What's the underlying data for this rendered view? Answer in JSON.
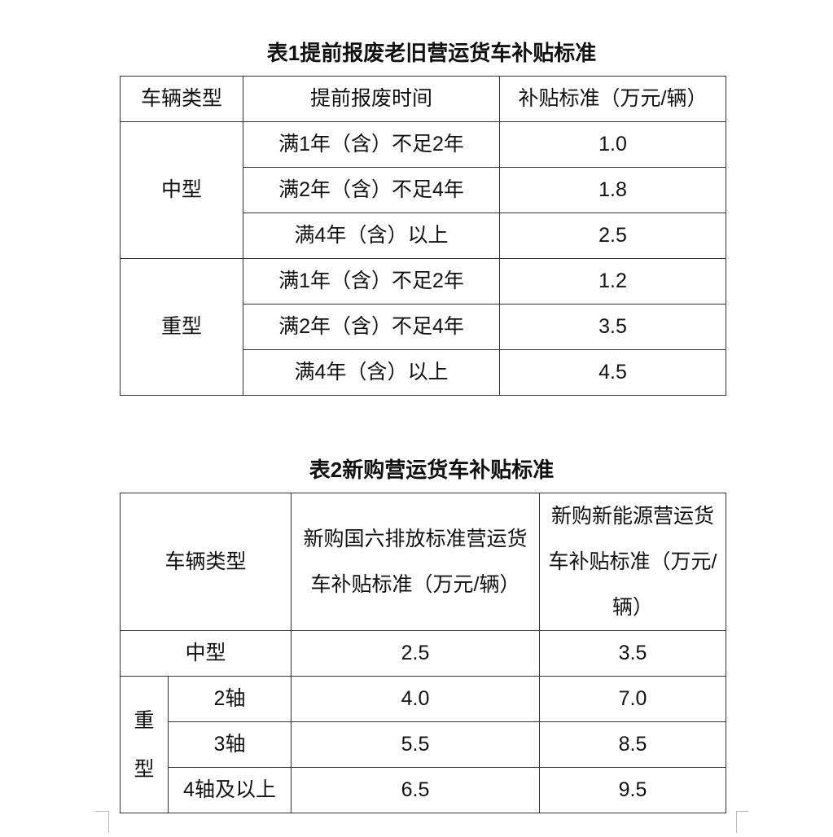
{
  "table1": {
    "title": "表1提前报废老旧营运货车补贴标准",
    "headers": [
      "车辆类型",
      "提前报废时间",
      "补贴标准（万元/辆）"
    ],
    "groups": [
      {
        "type": "中型",
        "rows": [
          {
            "period": "满1年（含）不足2年",
            "subsidy": "1.0"
          },
          {
            "period": "满2年（含）不足4年",
            "subsidy": "1.8"
          },
          {
            "period": "满4年（含）以上",
            "subsidy": "2.5"
          }
        ]
      },
      {
        "type": "重型",
        "rows": [
          {
            "period": "满1年（含）不足2年",
            "subsidy": "1.2"
          },
          {
            "period": "满2年（含）不足4年",
            "subsidy": "3.5"
          },
          {
            "period": "满4年（含）以上",
            "subsidy": "4.5"
          }
        ]
      }
    ]
  },
  "table2": {
    "title": "表2新购营运货车补贴标准",
    "headers": [
      "车辆类型",
      "新购国六排放标准营运货车补贴标准（万元/辆）",
      "新购新能源营运货车补贴标准（万元/辆）"
    ],
    "medium": {
      "type": "中型",
      "guo6": "2.5",
      "ev": "3.5"
    },
    "heavy": {
      "type": "重型",
      "rows": [
        {
          "axle": "2轴",
          "guo6": "4.0",
          "ev": "7.0"
        },
        {
          "axle": "3轴",
          "guo6": "5.5",
          "ev": "8.5"
        },
        {
          "axle": "4轴及以上",
          "guo6": "6.5",
          "ev": "9.5"
        }
      ]
    }
  }
}
